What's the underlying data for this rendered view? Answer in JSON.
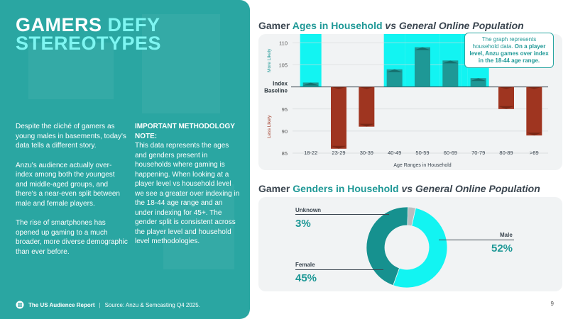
{
  "left": {
    "title_word1": "GAMERS",
    "title_word2": "DEFY",
    "title_line2": "STEREOTYPES",
    "para1": "Despite the cliché of gamers as young males in basements, today's data tells a different story.",
    "para2": "Anzu's audience actually over-index among both the youngest and middle-aged groups, and there's a near-even split between male and female players.",
    "para3": "The rise of smartphones has opened up gaming to a much broader, more diverse demographic than ever before.",
    "note_heading": "IMPORTANT METHODOLOGY NOTE:",
    "note_body": "This data represents the ages and genders present in households where gaming is happening. When looking at a player level vs household level we see a greater over indexing in the 18-44 age range and an under indexing for 45+. The gender split is consistent across the player level and household level methodologies."
  },
  "footer": {
    "report": "The US Audience Report",
    "separator": "|",
    "source": "Source: Anzu & Semcasting Q4 2025.",
    "page": "9"
  },
  "age_chart": {
    "title_part1": "Gamer",
    "title_part2": "Ages in Household",
    "title_part3": "vs General Online Population",
    "note_normal": "The graph represents household data.",
    "note_bold": "On a player level, Anzu games over index in the 18-44 age range."
  },
  "gender_chart": {
    "title_part1": "Gamer",
    "title_part2": "Genders in Household",
    "title_part3": "vs General Online Population"
  },
  "chart_data": [
    {
      "type": "bar",
      "title": "Gamer Ages in Household vs General Online Population",
      "xlabel": "Age Ranges in Household",
      "ylabel": "Index",
      "baseline_label": "Index Baseline",
      "upper_label": "More Likely",
      "lower_label": "Less Likely",
      "baseline": 100,
      "ylim": [
        85,
        112
      ],
      "yticks": [
        85,
        90,
        95,
        105,
        110
      ],
      "categories": [
        "18-22",
        "23-29",
        "30-39",
        "40-49",
        "50-59",
        "60-69",
        "70-79",
        "80-89",
        ">89"
      ],
      "values": [
        101,
        86,
        91,
        104,
        109,
        106,
        102,
        95,
        89
      ],
      "highlight_ranges": [
        "18-22",
        "40-49",
        "50-59",
        "60-69",
        "70-79"
      ],
      "colors": {
        "above": "#1e9896",
        "below": "#9f3520",
        "highlight": "#12f4f2"
      }
    },
    {
      "type": "pie",
      "variant": "donut",
      "title": "Gamer Genders in Household vs General Online Population",
      "labels": [
        "Male",
        "Female",
        "Unknown"
      ],
      "values": [
        52,
        45,
        3
      ],
      "display": [
        "52%",
        "45%",
        "3%"
      ],
      "colors": [
        "#12f4f2",
        "#16918f",
        "#b9bdbf"
      ]
    }
  ]
}
